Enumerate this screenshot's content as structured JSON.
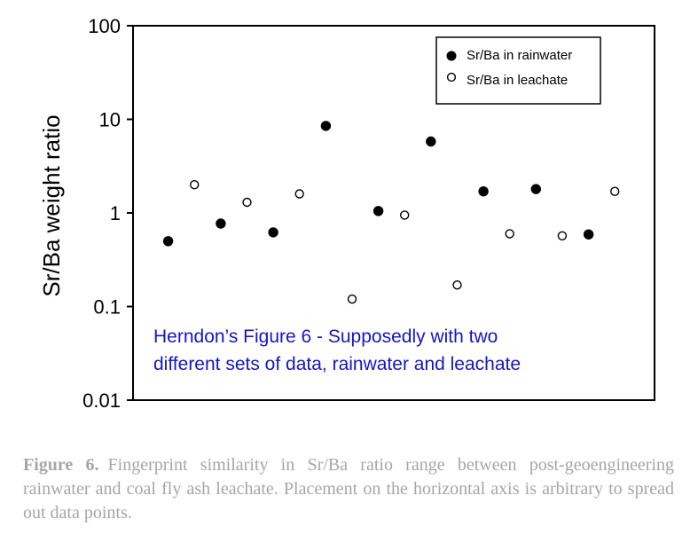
{
  "chart_data": {
    "type": "scatter",
    "title": "",
    "xlabel": "",
    "ylabel": "Sr/Ba weight ratio",
    "yscale": "log",
    "ylim": [
      0.01,
      100
    ],
    "yticks": [
      {
        "value": 100,
        "label": "100"
      },
      {
        "value": 10,
        "label": "10"
      },
      {
        "value": 1,
        "label": "1"
      },
      {
        "value": 0.1,
        "label": "0.1"
      },
      {
        "value": 0.01,
        "label": "0.01"
      }
    ],
    "xlim": [
      0,
      18.5
    ],
    "grid": false,
    "legend_position": "top-right",
    "series": [
      {
        "name": "Sr/Ba in rainwater",
        "marker": "filled-circle",
        "color": "#000000",
        "x": [
          1,
          3,
          5,
          7,
          9,
          11,
          13,
          15,
          17
        ],
        "y": [
          0.5,
          0.77,
          0.62,
          8.5,
          1.05,
          5.8,
          1.7,
          1.8,
          0.59
        ]
      },
      {
        "name": "Sr/Ba in leachate",
        "marker": "open-circle",
        "color": "#000000",
        "x": [
          2,
          4,
          6,
          8,
          10,
          12,
          14,
          16,
          18
        ],
        "y": [
          2.0,
          1.3,
          1.6,
          0.12,
          0.95,
          0.17,
          0.6,
          0.57,
          1.7
        ]
      }
    ],
    "annotation": {
      "lines": [
        "Herndon’s Figure 6 - Supposedly with two",
        "different sets of data, rainwater and leachate"
      ],
      "color": "#1515c8"
    }
  },
  "caption": {
    "label": "Figure 6.",
    "text": "Fingerprint similarity in Sr/Ba ratio range between post-geoengineering rainwater and coal fly ash leachate. Placement on the horizontal axis is arbitrary to spread out data points."
  }
}
